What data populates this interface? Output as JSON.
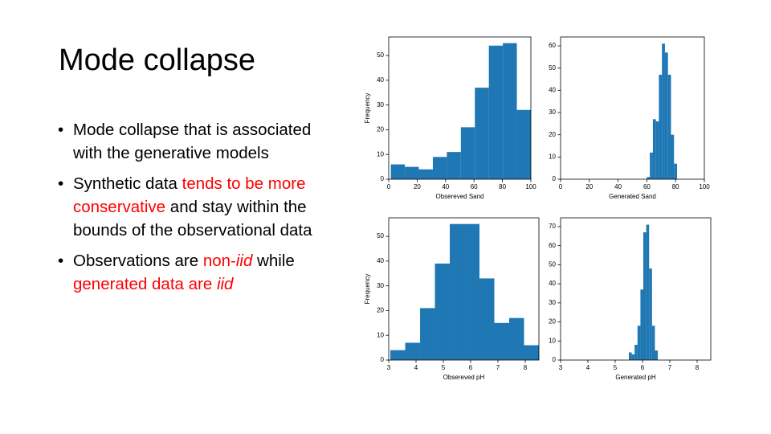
{
  "title": "Mode collapse",
  "bullets": [
    {
      "runs": [
        {
          "text": "Mode collapse that is associated with the generative models"
        }
      ]
    },
    {
      "runs": [
        {
          "text": "Synthetic data "
        },
        {
          "text": "tends to be more conservative",
          "color": "#ff0000"
        },
        {
          "text": " and stay within the bounds of the observational data"
        }
      ]
    },
    {
      "runs": [
        {
          "text": "Observations are "
        },
        {
          "text": "non-",
          "color": "#ff0000"
        },
        {
          "text": "iid",
          "color": "#ff0000",
          "italic": true
        },
        {
          "text": " while "
        },
        {
          "text": "generated data are ",
          "color": "#ff0000"
        },
        {
          "text": "iid",
          "color": "#ff0000",
          "italic": true
        }
      ]
    }
  ],
  "chart_data": [
    {
      "type": "histogram",
      "xlabel": "Obsereved Sand",
      "ylabel": "Frequency",
      "color": "#1f77b4",
      "bins": [
        1.5,
        11.35,
        21.2,
        31.05,
        40.9,
        50.75,
        60.6,
        70.45,
        80.3,
        90.15,
        100
      ],
      "values": [
        6,
        5,
        4,
        9,
        11,
        21,
        37,
        54,
        55,
        28
      ],
      "xlim": [
        0,
        100
      ],
      "xticks": [
        0,
        20,
        40,
        60,
        80,
        100
      ],
      "ylim": [
        0,
        57.5
      ],
      "yticks": [
        0,
        10,
        20,
        30,
        40,
        50
      ]
    },
    {
      "type": "histogram",
      "xlabel": "Generated Sand",
      "color": "#1f77b4",
      "bins": [
        60,
        62.1,
        64.2,
        66.3,
        68.4,
        70.5,
        72.6,
        74.7,
        76.8,
        78.9,
        81
      ],
      "values": [
        1,
        12,
        27,
        26,
        47,
        61,
        57,
        47,
        20,
        7
      ],
      "xlim": [
        0,
        100
      ],
      "xticks": [
        0,
        20,
        40,
        60,
        80,
        100
      ],
      "ylim": [
        0,
        64
      ],
      "yticks": [
        0,
        10,
        20,
        30,
        40,
        50,
        60
      ]
    },
    {
      "type": "histogram",
      "xlabel": "Obsereved pH",
      "ylabel": "Frequency",
      "color": "#1f77b4",
      "bins": [
        3.06,
        3.604,
        4.148,
        4.692,
        5.236,
        5.78,
        6.324,
        6.868,
        7.412,
        7.956,
        8.5
      ],
      "values": [
        4,
        7,
        21,
        39,
        55,
        55,
        33,
        15,
        17,
        6
      ],
      "xlim": [
        3,
        8.5
      ],
      "xticks": [
        3,
        4,
        5,
        6,
        7,
        8
      ],
      "ylim": [
        0,
        57.5
      ],
      "yticks": [
        0,
        10,
        20,
        30,
        40,
        50
      ]
    },
    {
      "type": "histogram",
      "xlabel": "Generated pH",
      "color": "#1f77b4",
      "bins": [
        5.5,
        5.606,
        5.712,
        5.818,
        5.924,
        6.03,
        6.136,
        6.242,
        6.348,
        6.454,
        6.56
      ],
      "values": [
        4,
        3,
        8,
        18,
        37,
        67,
        71,
        48,
        18,
        5
      ],
      "xlim": [
        3,
        8.5
      ],
      "xticks": [
        3,
        4,
        5,
        6,
        7,
        8
      ],
      "ylim": [
        0,
        74.6
      ],
      "yticks": [
        0,
        10,
        20,
        30,
        40,
        50,
        60,
        70
      ]
    }
  ]
}
